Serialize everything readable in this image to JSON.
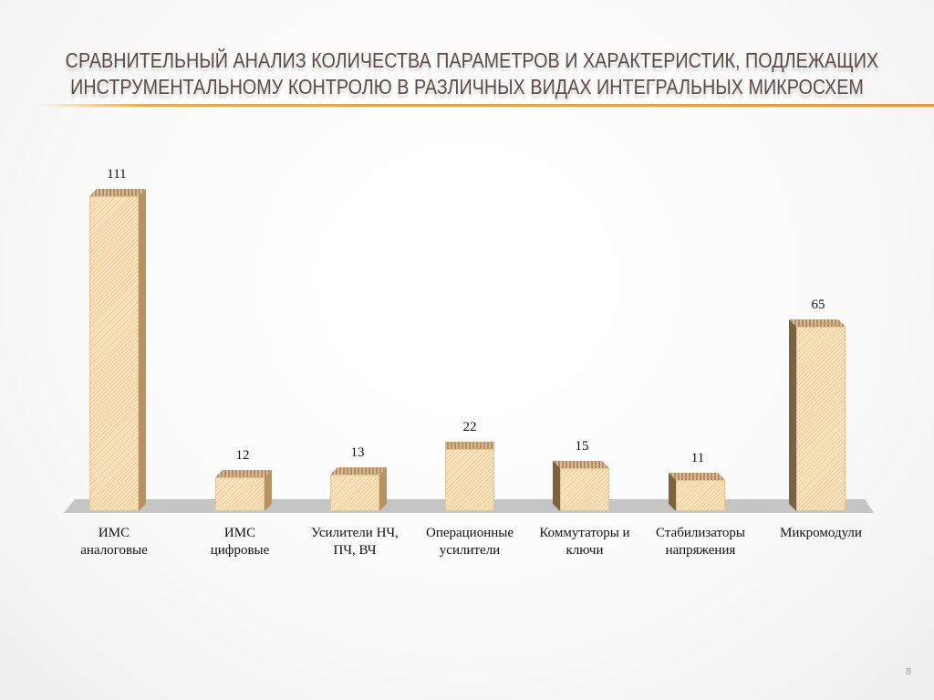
{
  "slide": {
    "title_line1": "СРАВНИТЕЛЬНЫЙ АНАЛИЗ КОЛИЧЕСТВА ПАРАМЕТРОВ И ХАРАКТЕРИСТИК, ПОДЛЕЖАЩИХ",
    "title_line2": "ИНСТРУМЕНТАЛЬНОМУ КОНТРОЛЮ В РАЗЛИЧНЫХ ВИДАХ ИНТЕГРАЛЬНЫХ МИКРОСХЕМ",
    "page_number": "8",
    "accent_color": "#e8a13e",
    "bar_color": "#f8d9a4",
    "floor_color": "#c5c5c5"
  },
  "chart_data": {
    "type": "bar",
    "title": "Сравнительный анализ количества параметров и характеристик, подлежащих инструментальному контролю в различных видах интегральных микросхем",
    "categories": [
      "ИМС аналоговые",
      "ИМС цифровые",
      "Усилители НЧ, ПЧ, ВЧ",
      "Операционные усилители",
      "Коммутаторы и ключи",
      "Стабилизаторы напряжения",
      "Микромодули"
    ],
    "category_lines": [
      [
        "ИМС",
        "аналоговые"
      ],
      [
        "ИМС",
        "цифровые"
      ],
      [
        "Усилители НЧ,",
        "ПЧ, ВЧ"
      ],
      [
        "Операционные",
        "усилители"
      ],
      [
        "Коммутаторы и",
        "ключи"
      ],
      [
        "Стабилизаторы",
        "напряжения"
      ],
      [
        "Микромодули",
        ""
      ]
    ],
    "values": [
      111,
      12,
      13,
      22,
      15,
      11,
      65
    ],
    "value_labels": [
      "111",
      "12",
      "13",
      "22",
      "15",
      "11",
      "65"
    ],
    "xlabel": "",
    "ylabel": "",
    "ylim": [
      0,
      111
    ],
    "grid": false,
    "legend": false,
    "style": "3d-columns",
    "data_labels": true
  }
}
